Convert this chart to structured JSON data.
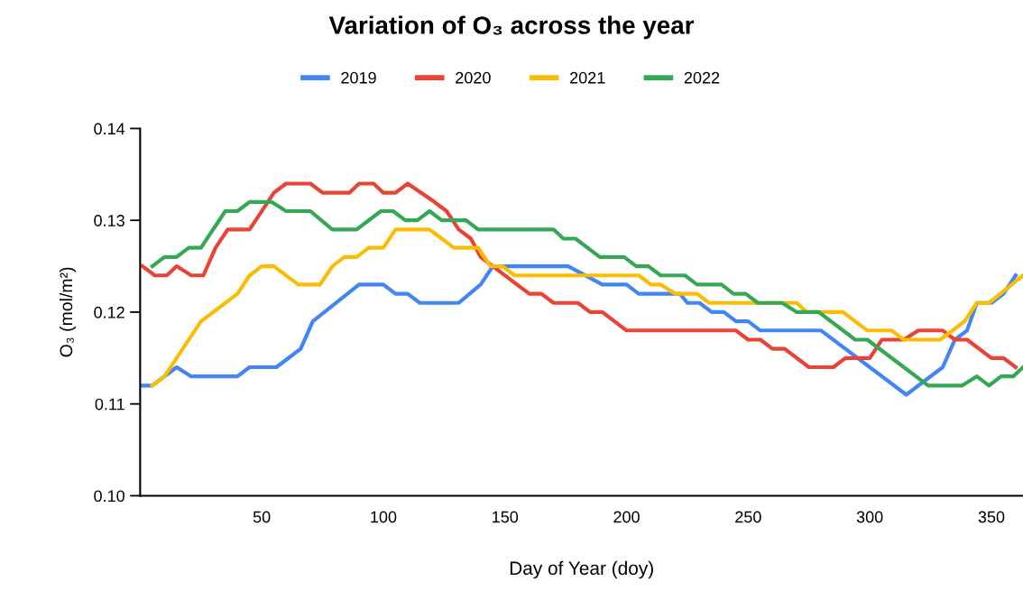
{
  "chart_data": {
    "type": "line",
    "title": "Variation of O₃ across the year",
    "xlabel": "Day of Year (doy)",
    "ylabel": "O₃ (mol/m²)",
    "xlim": [
      0,
      363
    ],
    "xticks": [
      50,
      100,
      150,
      200,
      250,
      300,
      350
    ],
    "ylim": [
      0.1,
      0.14
    ],
    "yticks": [
      {
        "value": 0.1,
        "label": "0.10"
      },
      {
        "value": 0.11,
        "label": "0.11"
      },
      {
        "value": 0.12,
        "label": "0.12"
      },
      {
        "value": 0.13,
        "label": "0.13"
      },
      {
        "value": 0.14,
        "label": "0.14"
      }
    ],
    "grid": false,
    "legend": "top",
    "marker": "none",
    "line_style": "solid",
    "series": [
      {
        "name": "2019",
        "color": "#4285f4",
        "x": [
          1,
          5,
          15,
          21,
          40,
          45,
          56,
          66,
          71,
          90,
          100,
          105,
          110,
          115,
          131,
          140,
          145,
          176,
          190,
          200,
          205,
          222,
          225,
          230,
          235,
          240,
          245,
          250,
          255,
          280,
          315,
          330,
          335,
          340,
          344,
          350,
          355,
          360
        ],
        "values": [
          0.112,
          0.112,
          0.114,
          0.113,
          0.113,
          0.114,
          0.114,
          0.116,
          0.119,
          0.123,
          0.123,
          0.122,
          0.122,
          0.121,
          0.121,
          0.123,
          0.125,
          0.125,
          0.123,
          0.123,
          0.122,
          0.122,
          0.121,
          0.121,
          0.12,
          0.12,
          0.119,
          0.119,
          0.118,
          0.118,
          0.111,
          0.114,
          0.117,
          0.118,
          0.121,
          0.121,
          0.122,
          0.124
        ]
      },
      {
        "name": "2020",
        "color": "#ea4335",
        "x": [
          1,
          6,
          11,
          15,
          21,
          26,
          31,
          36,
          45,
          55,
          60,
          70,
          75,
          86,
          90,
          96,
          100,
          105,
          110,
          121,
          126,
          131,
          136,
          140,
          145,
          160,
          165,
          170,
          180,
          185,
          190,
          200,
          245,
          250,
          255,
          260,
          265,
          275,
          285,
          290,
          300,
          305,
          314,
          320,
          330,
          335,
          340,
          350,
          355,
          360
        ],
        "values": [
          0.125,
          0.124,
          0.124,
          0.125,
          0.124,
          0.124,
          0.127,
          0.129,
          0.129,
          0.133,
          0.134,
          0.134,
          0.133,
          0.133,
          0.134,
          0.134,
          0.133,
          0.133,
          0.134,
          0.132,
          0.131,
          0.129,
          0.128,
          0.126,
          0.125,
          0.122,
          0.122,
          0.121,
          0.121,
          0.12,
          0.12,
          0.118,
          0.118,
          0.117,
          0.117,
          0.116,
          0.116,
          0.114,
          0.114,
          0.115,
          0.115,
          0.117,
          0.117,
          0.118,
          0.118,
          0.117,
          0.117,
          0.115,
          0.115,
          0.114
        ]
      },
      {
        "name": "2021",
        "color": "#fbbc04",
        "x": [
          5,
          10,
          25,
          40,
          45,
          50,
          55,
          65,
          74,
          79,
          84,
          89,
          94,
          100,
          105,
          119,
          124,
          129,
          139,
          144,
          149,
          154,
          205,
          210,
          214,
          220,
          229,
          234,
          270,
          274,
          289,
          299,
          309,
          314,
          329,
          339,
          344,
          349,
          363
        ],
        "values": [
          0.112,
          0.113,
          0.119,
          0.122,
          0.124,
          0.125,
          0.125,
          0.123,
          0.123,
          0.125,
          0.126,
          0.126,
          0.127,
          0.127,
          0.129,
          0.129,
          0.128,
          0.127,
          0.127,
          0.125,
          0.125,
          0.124,
          0.124,
          0.123,
          0.123,
          0.122,
          0.122,
          0.121,
          0.121,
          0.12,
          0.12,
          0.118,
          0.118,
          0.117,
          0.117,
          0.119,
          0.121,
          0.121,
          0.124
        ]
      },
      {
        "name": "2022",
        "color": "#34a853",
        "x": [
          5,
          10,
          15,
          20,
          25,
          35,
          40,
          45,
          54,
          60,
          70,
          79,
          89,
          99,
          104,
          109,
          114,
          119,
          124,
          134,
          139,
          170,
          174,
          179,
          189,
          199,
          204,
          209,
          214,
          224,
          229,
          239,
          244,
          249,
          254,
          264,
          270,
          279,
          294,
          299,
          324,
          338,
          344,
          349,
          354,
          359,
          363
        ],
        "values": [
          0.125,
          0.126,
          0.126,
          0.127,
          0.127,
          0.131,
          0.131,
          0.132,
          0.132,
          0.131,
          0.131,
          0.129,
          0.129,
          0.131,
          0.131,
          0.13,
          0.13,
          0.131,
          0.13,
          0.13,
          0.129,
          0.129,
          0.128,
          0.128,
          0.126,
          0.126,
          0.125,
          0.125,
          0.124,
          0.124,
          0.123,
          0.123,
          0.122,
          0.122,
          0.121,
          0.121,
          0.12,
          0.12,
          0.117,
          0.117,
          0.112,
          0.112,
          0.113,
          0.112,
          0.113,
          0.113,
          0.114
        ]
      }
    ]
  }
}
